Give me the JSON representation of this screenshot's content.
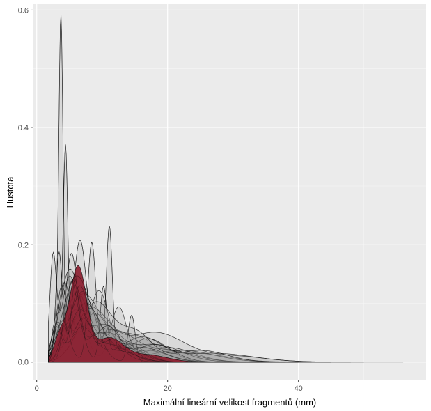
{
  "chart_data": {
    "type": "area",
    "title": "",
    "xlabel": "Maximální lineární velikost fragmentů (mm)",
    "ylabel": "Hustota",
    "xlim": [
      -0.5,
      59.5
    ],
    "ylim": [
      -0.03,
      0.61
    ],
    "x_ticks": [
      0,
      20,
      40
    ],
    "x_tick_labels": [
      "0",
      "20",
      "40"
    ],
    "y_ticks": [
      0.0,
      0.2,
      0.4,
      0.6
    ],
    "y_tick_labels": [
      "0.0",
      "0.2",
      "0.4",
      "0.6"
    ],
    "grid": true,
    "legend": "none",
    "colors": {
      "panel": "#ebebeb",
      "grid": "#ffffff",
      "curve_fill": "#9a9a9a",
      "curve_line": "#111111",
      "highlight_fill": "#8b1a2b"
    },
    "series": [
      {
        "peaks": [
          [
            3.7,
            0.57,
            0.32
          ],
          [
            2.7,
            0.06,
            0.5
          ],
          [
            6.5,
            0.08,
            1.5
          ],
          [
            11,
            0.03,
            3
          ]
        ],
        "xmin": 1.8,
        "xmax": 28
      },
      {
        "peaks": [
          [
            4.4,
            0.35,
            0.35
          ],
          [
            3.2,
            0.08,
            0.5
          ],
          [
            7,
            0.07,
            1.5
          ],
          [
            12,
            0.02,
            3
          ]
        ],
        "xmin": 1.8,
        "xmax": 30
      },
      {
        "peaks": [
          [
            11.1,
            0.215,
            0.45
          ],
          [
            3,
            0.06,
            0.8
          ],
          [
            7,
            0.06,
            1.8
          ],
          [
            14,
            0.025,
            2.5
          ]
        ],
        "xmin": 1.8,
        "xmax": 32
      },
      {
        "peaks": [
          [
            8.4,
            0.19,
            0.6
          ],
          [
            4,
            0.07,
            1.0
          ],
          [
            12,
            0.04,
            2.5
          ]
        ],
        "xmin": 1.8,
        "xmax": 30
      },
      {
        "peaks": [
          [
            6.6,
            0.2,
            1.0
          ],
          [
            3,
            0.06,
            0.8
          ],
          [
            12,
            0.04,
            3
          ]
        ],
        "xmin": 1.8,
        "xmax": 32
      },
      {
        "peaks": [
          [
            10.2,
            0.12,
            0.5
          ],
          [
            5.5,
            0.14,
            1.2
          ],
          [
            14,
            0.03,
            2.5
          ]
        ],
        "xmin": 1.8,
        "xmax": 33
      },
      {
        "peaks": [
          [
            14.5,
            0.08,
            0.55
          ],
          [
            7,
            0.12,
            2.0
          ],
          [
            3,
            0.05,
            0.8
          ]
        ],
        "xmin": 1.8,
        "xmax": 34
      },
      {
        "peaks": [
          [
            3.4,
            0.18,
            0.5
          ],
          [
            6.5,
            0.12,
            1.3
          ],
          [
            11,
            0.05,
            2.5
          ]
        ],
        "xmin": 1.8,
        "xmax": 32
      },
      {
        "peaks": [
          [
            2.5,
            0.17,
            0.5
          ],
          [
            5,
            0.14,
            1.2
          ],
          [
            10,
            0.05,
            2.5
          ]
        ],
        "xmin": 1.8,
        "xmax": 30
      },
      {
        "peaks": [
          [
            5.3,
            0.18,
            0.9
          ],
          [
            9.5,
            0.05,
            2.0
          ],
          [
            17,
            0.02,
            3
          ]
        ],
        "xmin": 1.8,
        "xmax": 35
      },
      {
        "peaks": [
          [
            5,
            0.15,
            1.5
          ],
          [
            10,
            0.06,
            2.5
          ],
          [
            18,
            0.03,
            4
          ]
        ],
        "xmin": 1.8,
        "xmax": 40
      },
      {
        "peaks": [
          [
            6,
            0.14,
            2.0
          ],
          [
            12,
            0.05,
            3
          ],
          [
            20,
            0.02,
            4
          ]
        ],
        "xmin": 1.8,
        "xmax": 42
      },
      {
        "peaks": [
          [
            7,
            0.11,
            2.5
          ],
          [
            14,
            0.045,
            3.5
          ],
          [
            24,
            0.015,
            5
          ]
        ],
        "xmin": 1.8,
        "xmax": 45
      },
      {
        "peaks": [
          [
            8,
            0.09,
            3
          ],
          [
            18,
            0.05,
            4.5
          ],
          [
            30,
            0.01,
            5
          ]
        ],
        "xmin": 1.8,
        "xmax": 48
      },
      {
        "peaks": [
          [
            4.2,
            0.13,
            1.0
          ],
          [
            8.8,
            0.08,
            2.0
          ],
          [
            15,
            0.03,
            3
          ]
        ],
        "xmin": 1.8,
        "xmax": 36
      },
      {
        "peaks": [
          [
            9.5,
            0.12,
            1.5
          ],
          [
            5,
            0.07,
            1.2
          ],
          [
            17,
            0.04,
            3
          ]
        ],
        "xmin": 1.8,
        "xmax": 38
      },
      {
        "peaks": [
          [
            12.5,
            0.09,
            1.2
          ],
          [
            6,
            0.09,
            1.5
          ],
          [
            20,
            0.025,
            4
          ]
        ],
        "xmin": 1.8,
        "xmax": 40
      },
      {
        "peaks": [
          [
            6.2,
            0.12,
            1.8
          ],
          [
            11.5,
            0.06,
            1.2
          ],
          [
            22,
            0.02,
            5
          ]
        ],
        "xmin": 1.8,
        "xmax": 56
      },
      {
        "peaks": [
          [
            7.5,
            0.1,
            2.2
          ],
          [
            16,
            0.04,
            3
          ],
          [
            27,
            0.015,
            6
          ]
        ],
        "xmin": 1.8,
        "xmax": 50
      },
      {
        "peaks": [
          [
            5.8,
            0.13,
            1.4
          ],
          [
            10.8,
            0.06,
            1.8
          ],
          [
            18,
            0.03,
            3
          ]
        ],
        "xmin": 1.8,
        "xmax": 38
      },
      {
        "peaks": [
          [
            3.8,
            0.12,
            0.8
          ],
          [
            8,
            0.09,
            2
          ],
          [
            16,
            0.025,
            3.5
          ]
        ],
        "xmin": 1.8,
        "xmax": 40
      },
      {
        "peaks": [
          [
            9,
            0.1,
            2.5
          ],
          [
            15,
            0.05,
            2.5
          ],
          [
            25,
            0.02,
            4
          ]
        ],
        "xmin": 1.8,
        "xmax": 45
      }
    ],
    "highlight_series": {
      "peaks": [
        [
          6.3,
          0.16,
          1.3
        ],
        [
          3.5,
          0.04,
          0.9
        ],
        [
          11,
          0.04,
          2.2
        ],
        [
          17,
          0.012,
          3
        ]
      ],
      "xmin": 1.8,
      "xmax": 32
    }
  }
}
